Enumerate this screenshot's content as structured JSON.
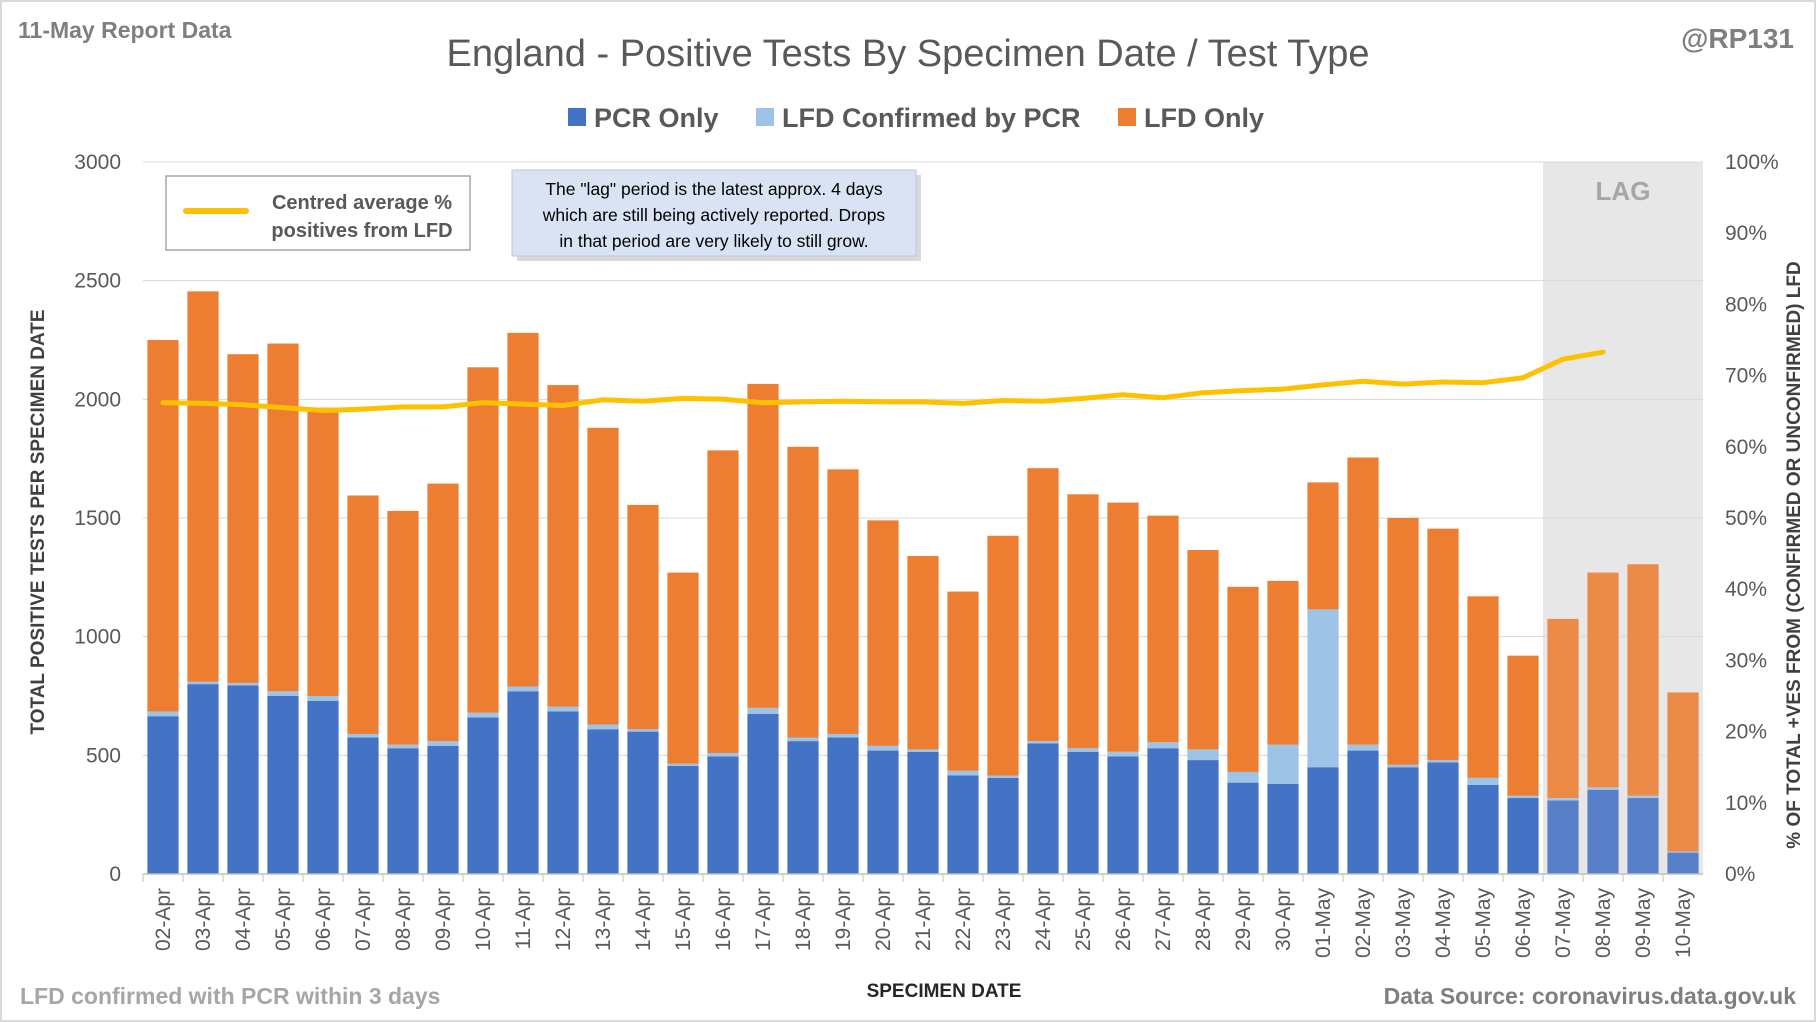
{
  "header": {
    "report_label": "11-May Report Data",
    "handle": "@RP131"
  },
  "footer": {
    "note": "LFD confirmed with PCR within 3 days",
    "source": "Data Source: coronavirus.data.gov.uk"
  },
  "lag_label": "LAG",
  "annotation": {
    "lines": [
      "The \"lag\" period is the latest approx. 4 days",
      "which are still being actively reported.  Drops",
      "in that period are very likely to still grow."
    ]
  },
  "line_legend": {
    "lines": [
      "Centred average %",
      "positives from LFD"
    ]
  },
  "colors": {
    "pcr_only": "#4472C4",
    "lfd_confirmed": "#9DC3E6",
    "lfd_only": "#ED7D31",
    "line": "#FFC000",
    "lag_shade": "#E7E7E7",
    "grid": "#D9D9D9",
    "text": "#595959"
  },
  "chart_data": {
    "type": "bar",
    "stacked": true,
    "title": "England - Positive Tests By Specimen Date / Test Type",
    "xlabel": "SPECIMEN DATE",
    "ylabel": "TOTAL POSITIVE TESTS PER SPECIMEN DATE",
    "y2label": "% OF TOTAL +VES FROM (CONFIRMED OR UNCONFIRMED) LFD",
    "ylim": [
      0,
      3000
    ],
    "yticks": [
      0,
      500,
      1000,
      1500,
      2000,
      2500,
      3000
    ],
    "y2lim": [
      0,
      100
    ],
    "y2ticks": [
      "0%",
      "10%",
      "20%",
      "30%",
      "40%",
      "50%",
      "60%",
      "70%",
      "80%",
      "90%",
      "100%"
    ],
    "legend_position": "top",
    "grid": true,
    "categories": [
      "02-Apr",
      "03-Apr",
      "04-Apr",
      "05-Apr",
      "06-Apr",
      "07-Apr",
      "08-Apr",
      "09-Apr",
      "10-Apr",
      "11-Apr",
      "12-Apr",
      "13-Apr",
      "14-Apr",
      "15-Apr",
      "16-Apr",
      "17-Apr",
      "18-Apr",
      "19-Apr",
      "20-Apr",
      "21-Apr",
      "22-Apr",
      "23-Apr",
      "24-Apr",
      "25-Apr",
      "26-Apr",
      "27-Apr",
      "28-Apr",
      "29-Apr",
      "30-Apr",
      "01-May",
      "02-May",
      "03-May",
      "04-May",
      "05-May",
      "06-May",
      "07-May",
      "08-May",
      "09-May",
      "10-May"
    ],
    "series": [
      {
        "name": "PCR Only",
        "values": [
          665,
          800,
          795,
          750,
          730,
          575,
          530,
          540,
          660,
          770,
          685,
          610,
          600,
          455,
          495,
          675,
          560,
          575,
          520,
          515,
          415,
          405,
          550,
          515,
          495,
          530,
          480,
          385,
          380,
          450,
          520,
          450,
          470,
          375,
          320,
          310,
          355,
          320,
          90
        ]
      },
      {
        "name": "LFD Confirmed by PCR",
        "values": [
          20,
          10,
          10,
          20,
          20,
          15,
          15,
          20,
          20,
          20,
          20,
          20,
          10,
          10,
          15,
          25,
          15,
          15,
          20,
          10,
          20,
          10,
          10,
          15,
          20,
          25,
          45,
          45,
          165,
          665,
          25,
          10,
          10,
          30,
          10,
          10,
          10,
          10,
          5
        ]
      },
      {
        "name": "LFD Only",
        "values": [
          1565,
          1645,
          1385,
          1465,
          1215,
          1005,
          985,
          1085,
          1455,
          1490,
          1355,
          1250,
          945,
          805,
          1275,
          1365,
          1225,
          1115,
          950,
          815,
          755,
          1010,
          1150,
          1070,
          1050,
          955,
          840,
          780,
          690,
          535,
          1210,
          1040,
          975,
          765,
          590,
          755,
          905,
          975,
          670
        ]
      },
      {
        "name": "Centred average % positives from LFD",
        "axis": "y2",
        "values": [
          66.2,
          66.1,
          65.9,
          65.5,
          65.1,
          65.3,
          65.6,
          65.6,
          66.2,
          66.0,
          65.8,
          66.6,
          66.4,
          66.8,
          66.7,
          66.2,
          66.3,
          66.4,
          66.3,
          66.3,
          66.1,
          66.5,
          66.4,
          66.8,
          67.3,
          66.9,
          67.6,
          67.9,
          68.1,
          68.7,
          69.2,
          68.8,
          69.1,
          69.0,
          69.7,
          72.3,
          73.3,
          null,
          null
        ]
      }
    ],
    "lag_categories": [
      "07-May",
      "08-May",
      "09-May",
      "10-May"
    ]
  }
}
